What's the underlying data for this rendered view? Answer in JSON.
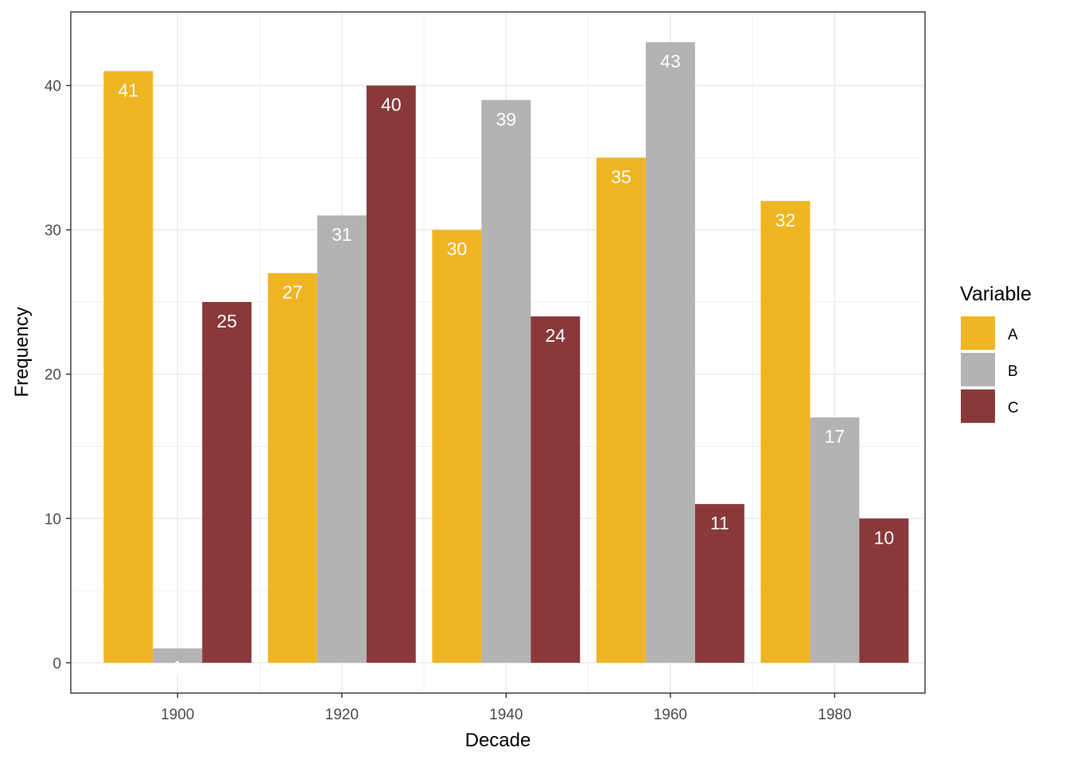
{
  "chart_data": {
    "type": "bar",
    "orientation": "vertical",
    "grouping": "dodge",
    "x": [
      1900,
      1920,
      1940,
      1960,
      1980
    ],
    "x_tick_labels": [
      "1900",
      "1920",
      "1940",
      "1960",
      "1980"
    ],
    "y_tick_labels": [
      "0",
      "10",
      "20",
      "30",
      "40"
    ],
    "y_ticks": [
      0,
      10,
      20,
      30,
      40
    ],
    "xlabel": "Decade",
    "ylabel": "Frequency",
    "xlim": [
      1887,
      1991
    ],
    "ylim": [
      -2.1,
      45.1
    ],
    "grid": true,
    "legend": {
      "title": "Variable",
      "position": "right"
    },
    "series": [
      {
        "name": "A",
        "color": "#EFB523",
        "values": [
          41,
          27,
          30,
          35,
          32
        ],
        "labels": [
          "41",
          "27",
          "30",
          "35",
          "32"
        ]
      },
      {
        "name": "B",
        "color": "#B3B3B3",
        "values": [
          1,
          31,
          39,
          43,
          17
        ],
        "labels": [
          "1",
          "31",
          "39",
          "43",
          "17"
        ]
      },
      {
        "name": "C",
        "color": "#8A393B",
        "values": [
          25,
          40,
          24,
          11,
          10
        ],
        "labels": [
          "25",
          "40",
          "24",
          "11",
          "10"
        ]
      }
    ]
  }
}
